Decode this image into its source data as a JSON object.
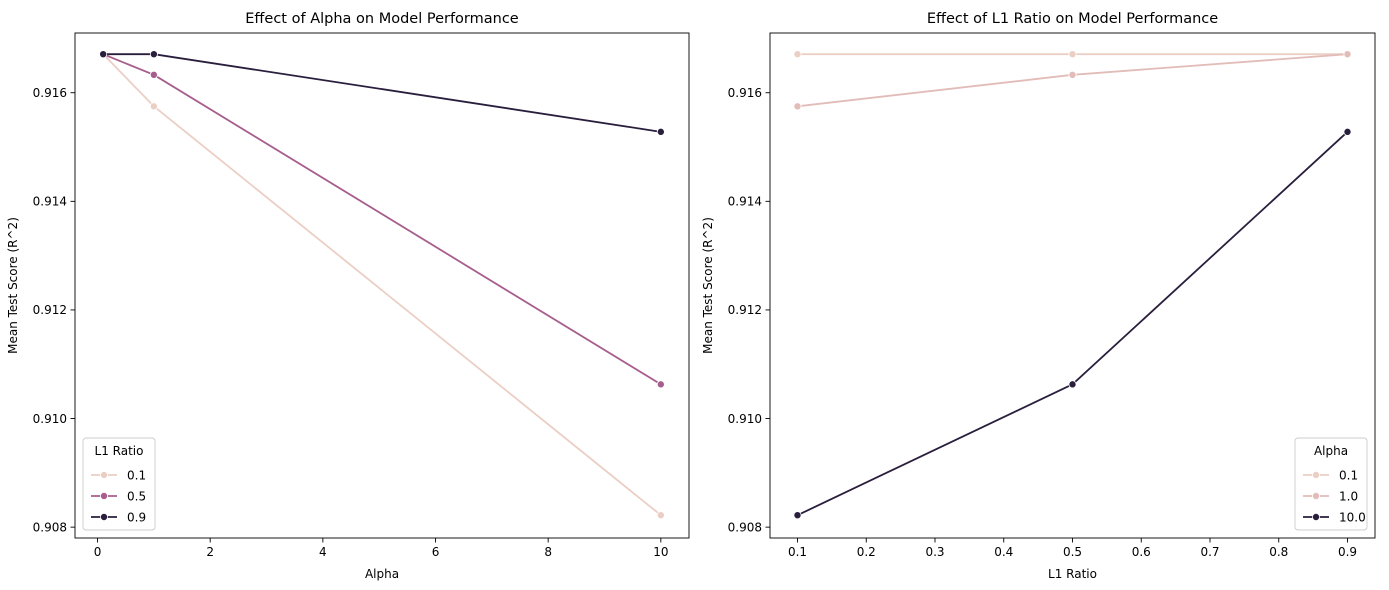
{
  "chart_data": [
    {
      "type": "line",
      "title": "Effect of Alpha on Model Performance",
      "xlabel": "Alpha",
      "ylabel": "Mean Test Score (R^2)",
      "xlim": [
        -0.4,
        10.5
      ],
      "ylim": [
        0.9078,
        0.9171
      ],
      "x_ticks": [
        0,
        2,
        4,
        6,
        8,
        10
      ],
      "x_tick_labels": [
        "0",
        "2",
        "4",
        "6",
        "8",
        "10"
      ],
      "y_ticks": [
        0.908,
        0.91,
        0.912,
        0.914,
        0.916
      ],
      "y_tick_labels": [
        "0.908",
        "0.910",
        "0.912",
        "0.914",
        "0.916"
      ],
      "grid": false,
      "legend": {
        "title": "L1 Ratio",
        "placement": "lower-left"
      },
      "x": [
        0.1,
        1,
        10
      ],
      "series": [
        {
          "name": "0.1",
          "color": "#ebcfc5",
          "values": [
            0.91671,
            0.91575,
            0.90822
          ]
        },
        {
          "name": "0.5",
          "color": "#a75e8c",
          "values": [
            0.91671,
            0.91633,
            0.91063
          ]
        },
        {
          "name": "0.9",
          "color": "#2a1e3d",
          "values": [
            0.91671,
            0.91671,
            0.91528
          ]
        }
      ]
    },
    {
      "type": "line",
      "title": "Effect of L1 Ratio on Model Performance",
      "xlabel": "L1 Ratio",
      "ylabel": "Mean Test Score (R^2)",
      "xlim": [
        0.06,
        0.94
      ],
      "ylim": [
        0.9078,
        0.9171
      ],
      "x_ticks": [
        0.1,
        0.2,
        0.3,
        0.4,
        0.5,
        0.6,
        0.7,
        0.8,
        0.9
      ],
      "x_tick_labels": [
        "0.1",
        "0.2",
        "0.3",
        "0.4",
        "0.5",
        "0.6",
        "0.7",
        "0.8",
        "0.9"
      ],
      "y_ticks": [
        0.908,
        0.91,
        0.912,
        0.914,
        0.916
      ],
      "y_tick_labels": [
        "0.908",
        "0.910",
        "0.912",
        "0.914",
        "0.916"
      ],
      "grid": false,
      "legend": {
        "title": "Alpha",
        "placement": "lower-right"
      },
      "x": [
        0.1,
        0.5,
        0.9
      ],
      "series": [
        {
          "name": "0.1",
          "color": "#ebcfc5",
          "values": [
            0.91671,
            0.91671,
            0.91671
          ]
        },
        {
          "name": "1.0",
          "color": "#e2bcb8",
          "values": [
            0.91575,
            0.91633,
            0.91671
          ]
        },
        {
          "name": "10.0",
          "color": "#2a1e3d",
          "values": [
            0.90822,
            0.91063,
            0.91528
          ]
        }
      ]
    }
  ]
}
